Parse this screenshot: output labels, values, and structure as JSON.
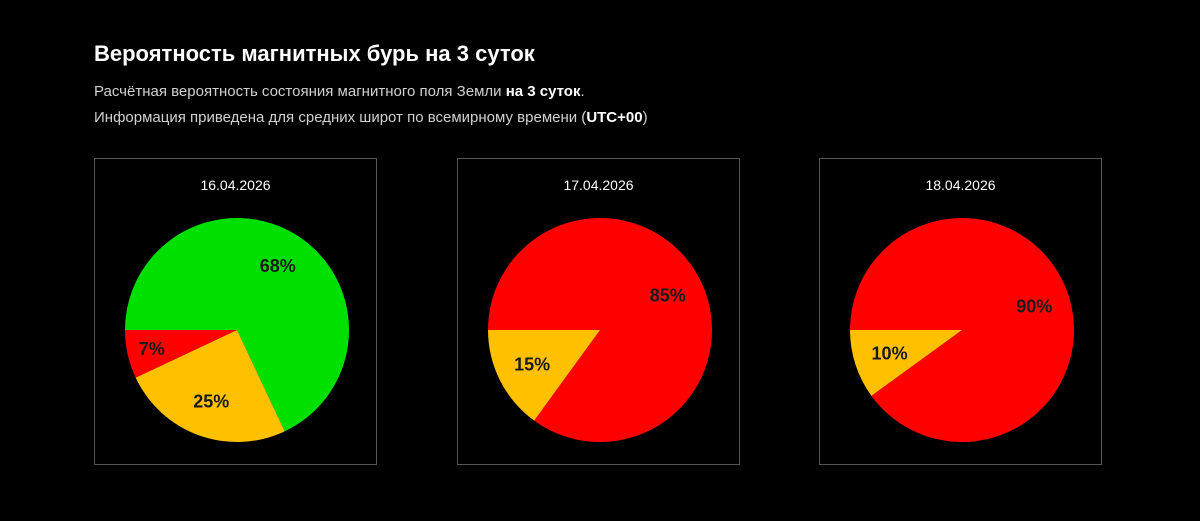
{
  "header": {
    "title": "Вероятность магнитных бурь на 3 суток",
    "line1_prefix": "Расчётная вероятность состояния магнитного поля Земли ",
    "line1_bold": "на 3 суток",
    "line1_suffix": ".",
    "line2_prefix": "Информация приведена для средних широт по всемирному времени (",
    "line2_bold": "UTC+00",
    "line2_suffix": ")"
  },
  "colors": {
    "green": "#00e000",
    "yellow": "#ffc000",
    "red": "#ff0000",
    "background": "#000000",
    "card_border": "#555555"
  },
  "chart_data": [
    {
      "type": "pie",
      "title": "16.04.2026",
      "slices": [
        {
          "value": 68,
          "label": "68%",
          "color": "#00e000"
        },
        {
          "value": 25,
          "label": "25%",
          "color": "#ffc000"
        },
        {
          "value": 7,
          "label": "7%",
          "color": "#ff0000"
        }
      ]
    },
    {
      "type": "pie",
      "title": "17.04.2026",
      "slices": [
        {
          "value": 85,
          "label": "85%",
          "color": "#ff0000"
        },
        {
          "value": 15,
          "label": "15%",
          "color": "#ffc000"
        }
      ]
    },
    {
      "type": "pie",
      "title": "18.04.2026",
      "slices": [
        {
          "value": 90,
          "label": "90%",
          "color": "#ff0000"
        },
        {
          "value": 10,
          "label": "10%",
          "color": "#ffc000"
        }
      ]
    }
  ]
}
